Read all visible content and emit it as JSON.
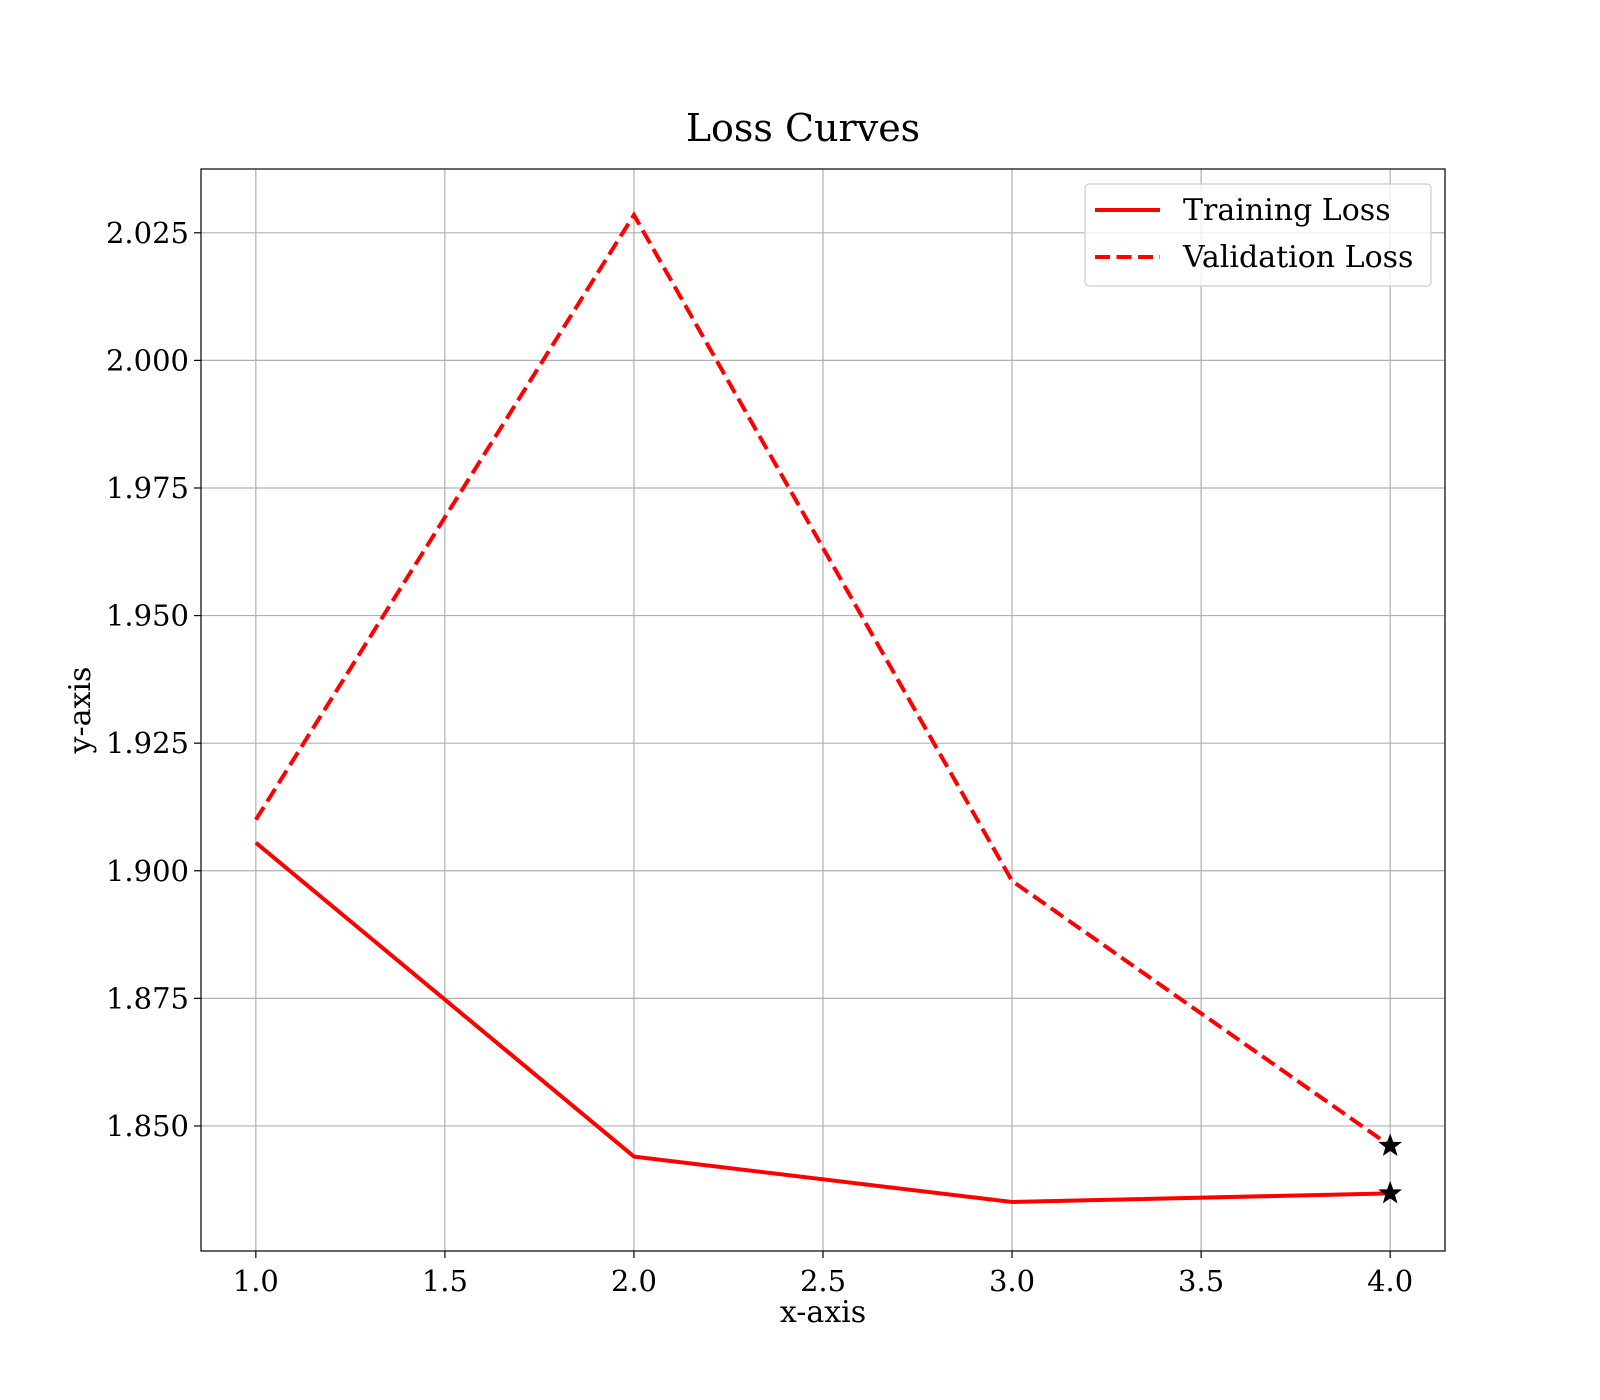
{
  "chart_data": {
    "type": "line",
    "title": "Loss Curves",
    "xlabel": "x-axis",
    "ylabel": "y-axis",
    "xlim": [
      0.855,
      4.145
    ],
    "ylim": [
      1.8255,
      2.0375
    ],
    "xticks": [
      1.0,
      1.5,
      2.0,
      2.5,
      3.0,
      3.5,
      4.0
    ],
    "xtick_labels": [
      "1.0",
      "1.5",
      "2.0",
      "2.5",
      "3.0",
      "3.5",
      "4.0"
    ],
    "yticks": [
      1.85,
      1.875,
      1.9,
      1.925,
      1.95,
      1.975,
      2.0,
      2.025
    ],
    "ytick_labels": [
      "1.850",
      "1.875",
      "1.900",
      "1.925",
      "1.950",
      "1.975",
      "2.000",
      "2.025"
    ],
    "grid": true,
    "legend_position": "top-right",
    "series": [
      {
        "name": "Training Loss",
        "style": "solid",
        "color": "#ff0000",
        "x": [
          1,
          2,
          3,
          4
        ],
        "y": [
          1.9055,
          1.844,
          1.8351,
          1.8368
        ],
        "final_marker": "star"
      },
      {
        "name": "Validation Loss",
        "style": "dashed",
        "color": "#ff0000",
        "x": [
          1,
          2,
          3,
          4
        ],
        "y": [
          1.91,
          2.0285,
          1.898,
          1.8461
        ],
        "final_marker": "star"
      }
    ],
    "marker_color": "#000000",
    "grid_color": "#b0b0b0"
  }
}
